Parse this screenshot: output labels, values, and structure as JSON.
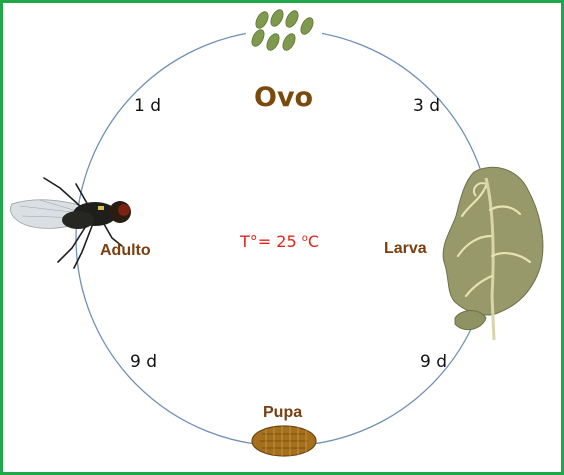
{
  "stages": {
    "egg": "Ovo",
    "larva": "Larva",
    "pupa": "Pupa",
    "adult": "Adulto"
  },
  "durations": {
    "egg_to_larva": "3 d",
    "larva_to_pupa": "9 d",
    "pupa_to_adult": "9 d",
    "adult_to_egg": "1 d"
  },
  "temperature": {
    "prefix": "T°= 25 ",
    "unit_sup": "o",
    "unit": "C"
  },
  "colors": {
    "frame": "#1fa84a",
    "cycle": "#6f8fb8",
    "stage_label": "#7a3e10",
    "temperature": "#e0241b"
  }
}
